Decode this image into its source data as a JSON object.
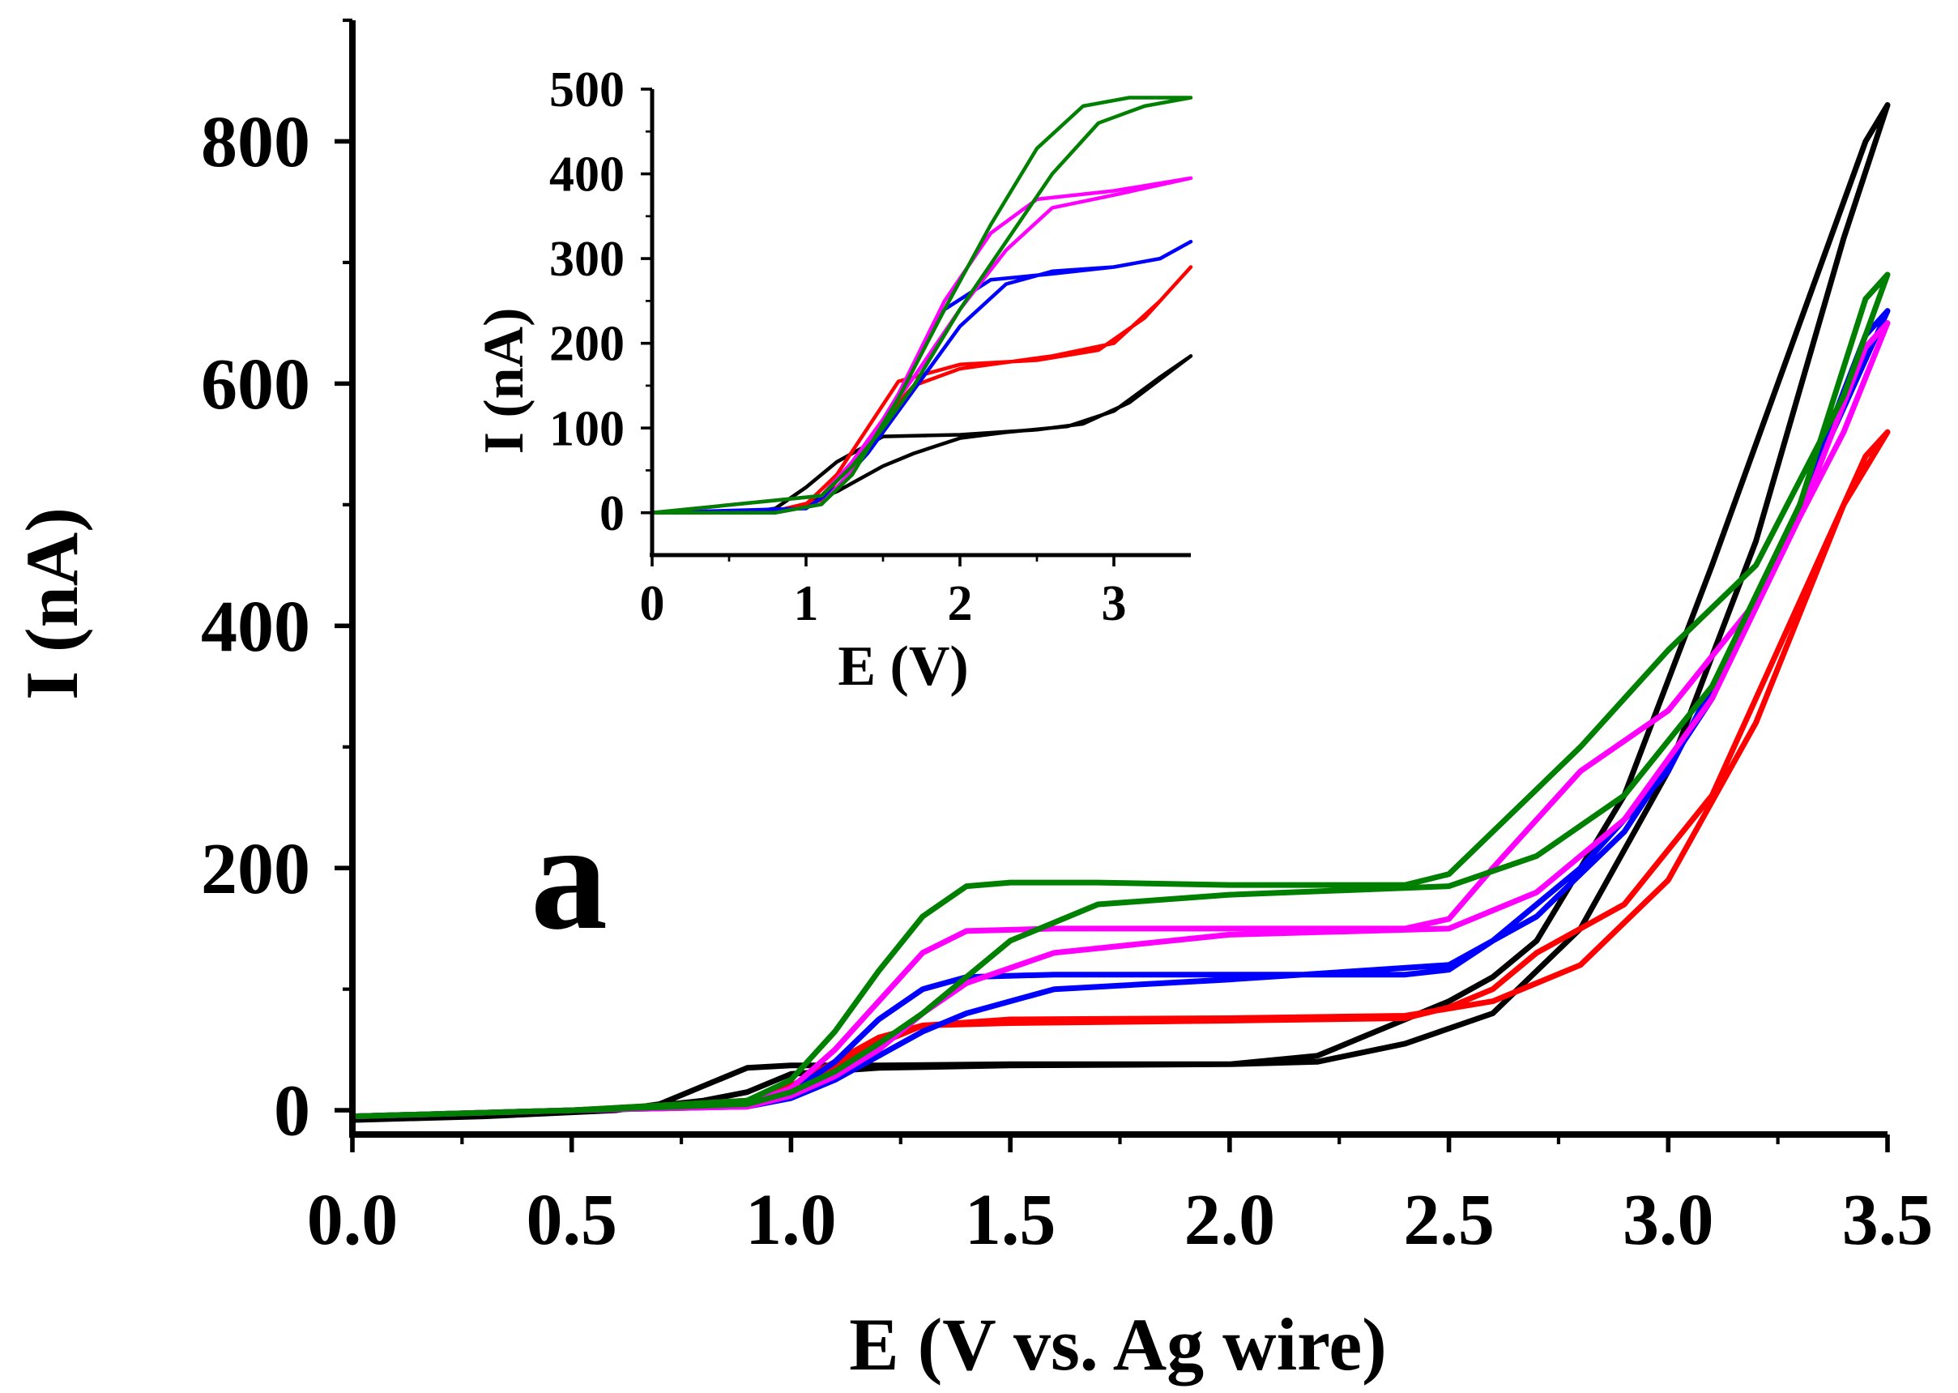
{
  "chart_data": [
    {
      "type": "line",
      "panel": "main",
      "panel_label": "a",
      "xlabel": "E (V vs. Ag wire)",
      "ylabel": "I (nA)",
      "xlim": [
        0,
        3.5
      ],
      "ylim": [
        -20,
        900
      ],
      "xticks": [
        "0.0",
        "0.5",
        "1.0",
        "1.5",
        "2.0",
        "2.5",
        "3.0",
        "3.5"
      ],
      "yticks": [
        "0",
        "200",
        "400",
        "600",
        "800"
      ],
      "series": [
        {
          "name": "black",
          "color": "#000000",
          "x": [
            0,
            0.3,
            0.6,
            0.7,
            0.8,
            0.9,
            1.0,
            1.2,
            1.5,
            2.0,
            2.2,
            2.4,
            2.6,
            2.8,
            3.0,
            3.2,
            3.4,
            3.5,
            3.45,
            3.3,
            3.1,
            2.9,
            2.7,
            2.6,
            2.5,
            2.4,
            2.3,
            2.2,
            2.0,
            1.5,
            1.2,
            1.0,
            0.9,
            0.8,
            0.7,
            0.6,
            0.3,
            0
          ],
          "y": [
            -8,
            -5,
            0,
            5,
            20,
            35,
            37,
            37,
            38,
            38,
            40,
            55,
            80,
            150,
            280,
            470,
            720,
            830,
            800,
            650,
            450,
            260,
            140,
            110,
            90,
            75,
            60,
            45,
            38,
            37,
            35,
            30,
            15,
            8,
            4,
            1,
            -3,
            -8
          ]
        },
        {
          "name": "red",
          "color": "#ff0000",
          "x": [
            0,
            0.5,
            0.9,
            1.0,
            1.1,
            1.2,
            1.3,
            1.5,
            2.0,
            2.4,
            2.6,
            2.8,
            3.0,
            3.2,
            3.4,
            3.5,
            3.45,
            3.3,
            3.1,
            2.9,
            2.7,
            2.6,
            2.5,
            2.4,
            2.0,
            1.5,
            1.3,
            1.2,
            1.1,
            1.0,
            0.9,
            0.5,
            0
          ],
          "y": [
            -5,
            0,
            5,
            15,
            35,
            55,
            70,
            75,
            76,
            78,
            90,
            120,
            190,
            320,
            500,
            560,
            540,
            420,
            260,
            170,
            130,
            100,
            85,
            76,
            74,
            72,
            70,
            60,
            40,
            20,
            8,
            0,
            -5
          ]
        },
        {
          "name": "blue",
          "color": "#0000ff",
          "x": [
            0,
            0.5,
            0.9,
            1.0,
            1.1,
            1.2,
            1.3,
            1.4,
            1.6,
            2.0,
            2.4,
            2.5,
            2.6,
            2.8,
            3.0,
            3.2,
            3.4,
            3.5,
            3.45,
            3.3,
            3.1,
            2.9,
            2.7,
            2.5,
            2.0,
            1.6,
            1.4,
            1.3,
            1.2,
            1.1,
            1.0,
            0.9,
            0.5,
            0
          ],
          "y": [
            -5,
            0,
            5,
            15,
            40,
            75,
            100,
            110,
            112,
            112,
            112,
            116,
            140,
            200,
            280,
            420,
            580,
            660,
            640,
            500,
            340,
            230,
            160,
            120,
            108,
            100,
            80,
            65,
            45,
            25,
            10,
            3,
            0,
            -5
          ]
        },
        {
          "name": "magenta",
          "color": "#ff00ff",
          "x": [
            0,
            0.5,
            0.9,
            1.0,
            1.1,
            1.2,
            1.3,
            1.4,
            1.6,
            2.0,
            2.4,
            2.5,
            2.6,
            2.8,
            3.0,
            3.2,
            3.4,
            3.5,
            3.45,
            3.3,
            3.1,
            2.9,
            2.7,
            2.5,
            2.0,
            1.6,
            1.4,
            1.3,
            1.2,
            1.1,
            1.0,
            0.9,
            0.5,
            0
          ],
          "y": [
            -5,
            0,
            5,
            18,
            50,
            90,
            130,
            148,
            150,
            150,
            150,
            158,
            200,
            280,
            330,
            420,
            560,
            650,
            630,
            490,
            340,
            240,
            180,
            150,
            145,
            130,
            105,
            80,
            50,
            28,
            12,
            3,
            0,
            -5
          ]
        },
        {
          "name": "green",
          "color": "#008000",
          "x": [
            0,
            0.5,
            0.9,
            1.0,
            1.1,
            1.2,
            1.3,
            1.4,
            1.5,
            1.7,
            2.0,
            2.4,
            2.5,
            2.6,
            2.8,
            3.0,
            3.2,
            3.4,
            3.5,
            3.45,
            3.3,
            3.1,
            2.9,
            2.7,
            2.5,
            2.0,
            1.7,
            1.5,
            1.4,
            1.3,
            1.2,
            1.1,
            1.0,
            0.9,
            0.5,
            0
          ],
          "y": [
            -5,
            0,
            8,
            25,
            65,
            115,
            160,
            185,
            188,
            188,
            186,
            186,
            195,
            230,
            300,
            380,
            450,
            590,
            690,
            670,
            500,
            350,
            260,
            210,
            185,
            178,
            170,
            140,
            110,
            80,
            55,
            32,
            15,
            5,
            0,
            -5
          ]
        }
      ]
    },
    {
      "type": "line",
      "panel": "inset",
      "xlabel": "E (V)",
      "ylabel": "I (nA)",
      "xlim": [
        0,
        3.5
      ],
      "ylim": [
        -50,
        500
      ],
      "xticks": [
        "0",
        "1",
        "2",
        "3"
      ],
      "yticks": [
        "0",
        "100",
        "200",
        "300",
        "400",
        "500"
      ],
      "series": [
        {
          "name": "black",
          "color": "#000000",
          "x": [
            0,
            0.6,
            0.8,
            1.0,
            1.2,
            1.5,
            2.0,
            2.5,
            2.8,
            3.1,
            3.5,
            3.3,
            3.0,
            2.7,
            2.3,
            2.0,
            1.7,
            1.5,
            1.2,
            1.0,
            0.8,
            0
          ],
          "y": [
            0,
            0,
            5,
            30,
            60,
            90,
            92,
            98,
            105,
            130,
            185,
            160,
            120,
            102,
            95,
            88,
            70,
            55,
            25,
            10,
            2,
            0
          ]
        },
        {
          "name": "red",
          "color": "#ff0000",
          "x": [
            0,
            0.8,
            1.0,
            1.2,
            1.4,
            1.6,
            2.0,
            2.5,
            2.9,
            3.2,
            3.5,
            3.3,
            3.0,
            2.6,
            2.2,
            2.0,
            1.7,
            1.5,
            1.3,
            1.1,
            0.8,
            0
          ],
          "y": [
            0,
            0,
            10,
            45,
            100,
            155,
            175,
            180,
            192,
            230,
            290,
            250,
            200,
            185,
            175,
            170,
            150,
            110,
            60,
            15,
            2,
            0
          ]
        },
        {
          "name": "blue",
          "color": "#0000ff",
          "x": [
            0,
            0.8,
            1.1,
            1.3,
            1.6,
            1.9,
            2.2,
            2.6,
            3.0,
            3.3,
            3.5,
            3.3,
            3.0,
            2.6,
            2.3,
            2.0,
            1.8,
            1.6,
            1.4,
            1.2,
            1.0,
            0
          ],
          "y": [
            0,
            0,
            10,
            50,
            140,
            240,
            275,
            282,
            290,
            300,
            320,
            300,
            290,
            285,
            270,
            220,
            170,
            120,
            70,
            30,
            5,
            0
          ]
        },
        {
          "name": "magenta",
          "color": "#ff00ff",
          "x": [
            0,
            0.8,
            1.1,
            1.3,
            1.6,
            1.9,
            2.2,
            2.5,
            3.0,
            3.5,
            3.0,
            2.6,
            2.3,
            2.0,
            1.7,
            1.5,
            1.3,
            1.1,
            0
          ],
          "y": [
            0,
            0,
            10,
            50,
            140,
            250,
            330,
            370,
            380,
            395,
            375,
            360,
            310,
            240,
            160,
            110,
            60,
            20,
            0
          ]
        },
        {
          "name": "green",
          "color": "#008000",
          "x": [
            0,
            0.8,
            1.1,
            1.3,
            1.6,
            1.9,
            2.2,
            2.5,
            2.8,
            3.1,
            3.5,
            3.2,
            2.9,
            2.6,
            2.3,
            2.0,
            1.7,
            1.5,
            1.3,
            1.1,
            0
          ],
          "y": [
            0,
            0,
            10,
            45,
            135,
            240,
            340,
            430,
            480,
            490,
            490,
            480,
            460,
            400,
            320,
            240,
            150,
            100,
            55,
            20,
            0
          ]
        }
      ]
    }
  ]
}
